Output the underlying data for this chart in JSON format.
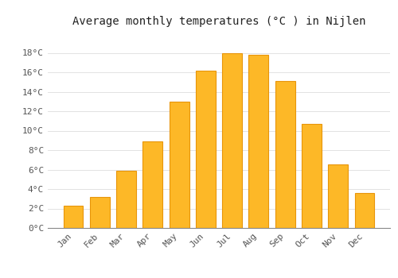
{
  "months": [
    "Jan",
    "Feb",
    "Mar",
    "Apr",
    "May",
    "Jun",
    "Jul",
    "Aug",
    "Sep",
    "Oct",
    "Nov",
    "Dec"
  ],
  "values": [
    2.3,
    3.2,
    5.9,
    8.9,
    13.0,
    16.2,
    18.0,
    17.8,
    15.1,
    10.7,
    6.5,
    3.6
  ],
  "bar_color": "#FDB827",
  "bar_edge_color": "#E8950A",
  "background_color": "#FFFFFF",
  "plot_bg_color": "#FFFFFF",
  "grid_color": "#DDDDDD",
  "title": "Average monthly temperatures (°C ) in Nijlen",
  "title_fontsize": 10,
  "tick_label_color": "#555555",
  "ylim": [
    0,
    20
  ],
  "yticks": [
    0,
    2,
    4,
    6,
    8,
    10,
    12,
    14,
    16,
    18
  ],
  "ytick_labels": [
    "0°C",
    "2°C",
    "4°C",
    "6°C",
    "8°C",
    "10°C",
    "12°C",
    "14°C",
    "16°C",
    "18°C"
  ]
}
